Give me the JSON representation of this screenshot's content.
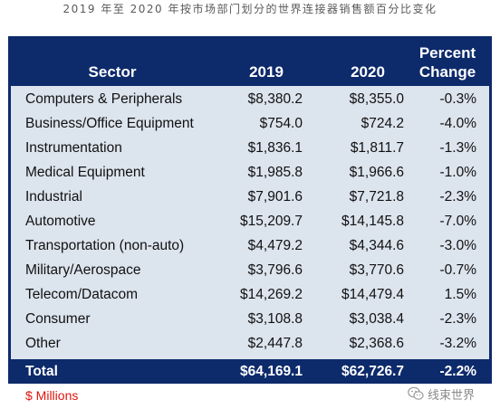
{
  "caption": "2019 年至 2020 年按市场部门划分的世界连接器销售额百分比变化",
  "table": {
    "headers": {
      "sector": "Sector",
      "y2019": "2019",
      "y2020": "2020",
      "pct_line1": "Percent",
      "pct_line2": "Change"
    },
    "rows": [
      {
        "sector": "Computers & Peripherals",
        "y2019": "$8,380.2",
        "y2020": "$8,355.0",
        "pct": "-0.3%"
      },
      {
        "sector": "Business/Office Equipment",
        "y2019": "$754.0",
        "y2020": "$724.2",
        "pct": "-4.0%"
      },
      {
        "sector": "Instrumentation",
        "y2019": "$1,836.1",
        "y2020": "$1,811.7",
        "pct": "-1.3%"
      },
      {
        "sector": "Medical Equipment",
        "y2019": "$1,985.8",
        "y2020": "$1,966.6",
        "pct": "-1.0%"
      },
      {
        "sector": "Industrial",
        "y2019": "$7,901.6",
        "y2020": "$7,721.8",
        "pct": "-2.3%"
      },
      {
        "sector": "Automotive",
        "y2019": "$15,209.7",
        "y2020": "$14,145.8",
        "pct": "-7.0%"
      },
      {
        "sector": "Transportation (non-auto)",
        "y2019": "$4,479.2",
        "y2020": "$4,344.6",
        "pct": "-3.0%"
      },
      {
        "sector": "Military/Aerospace",
        "y2019": "$3,796.6",
        "y2020": "$3,770.6",
        "pct": "-0.7%"
      },
      {
        "sector": "Telecom/Datacom",
        "y2019": "$14,269.2",
        "y2020": "$14,479.4",
        "pct": "1.5%"
      },
      {
        "sector": "Consumer",
        "y2019": "$3,108.8",
        "y2020": "$3,038.4",
        "pct": "-2.3%"
      },
      {
        "sector": "Other",
        "y2019": "$2,447.8",
        "y2020": "$2,368.6",
        "pct": "-3.2%"
      }
    ],
    "total": {
      "sector": "Total",
      "y2019": "$64,169.1",
      "y2020": "$62,726.7",
      "pct": "-2.2%"
    }
  },
  "footnote": "$ Millions",
  "watermark": {
    "text": "线束世界",
    "icon": "wechat-icon"
  },
  "colors": {
    "header_bg": "#0d2a6b",
    "row_bg": "#dce4ee",
    "footnote": "#e0140c"
  }
}
